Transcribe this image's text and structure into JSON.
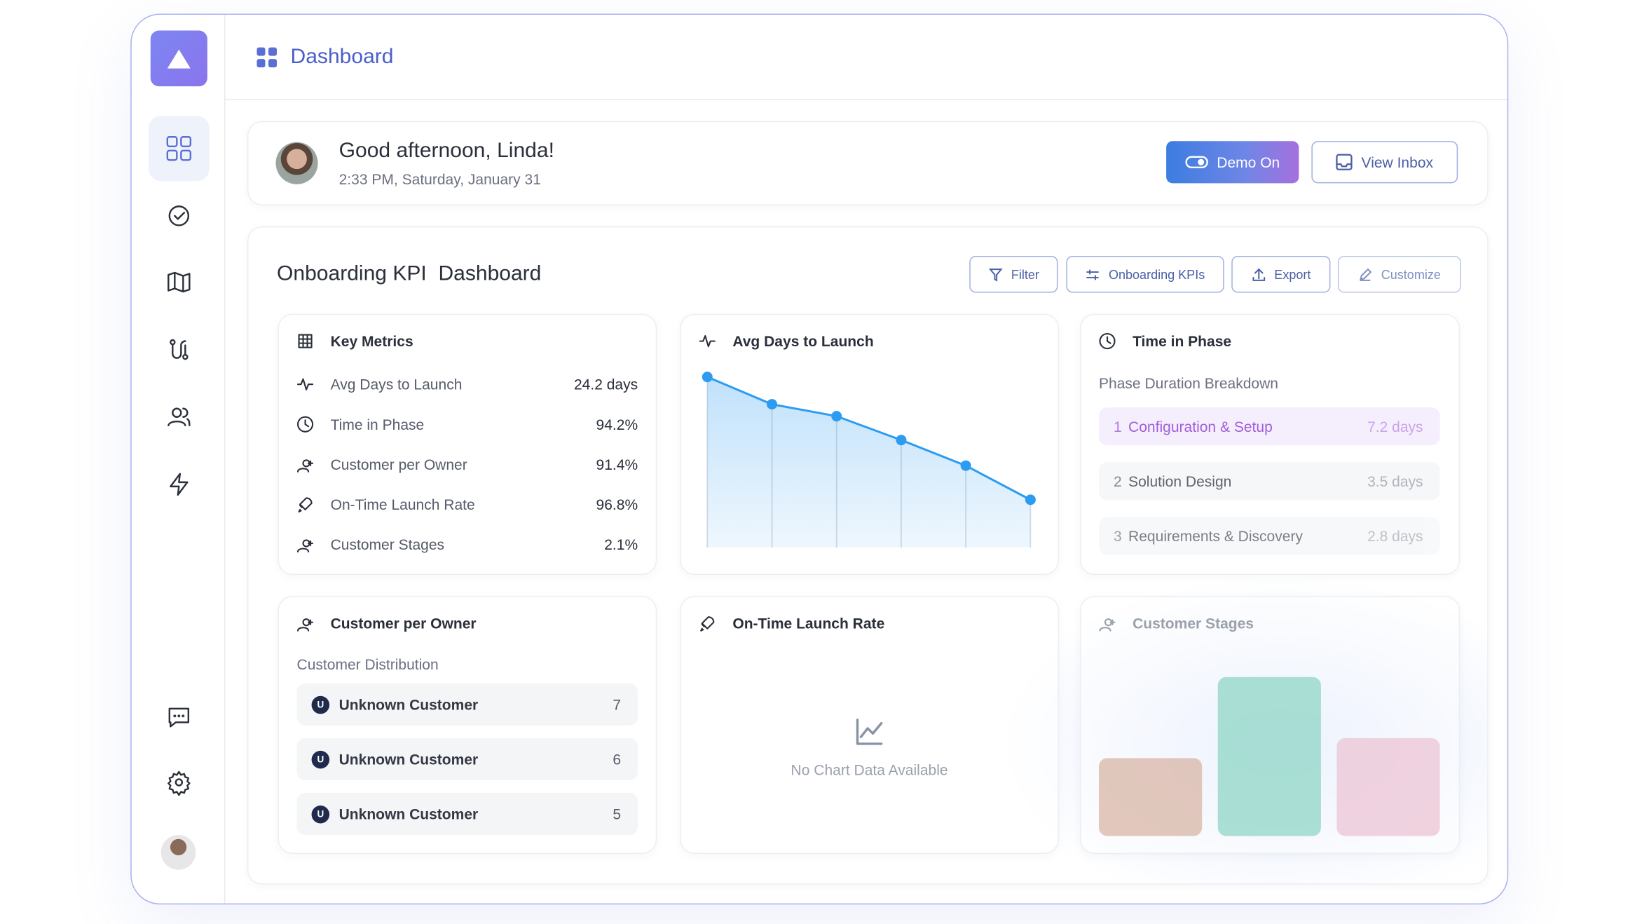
{
  "header": {
    "title": "Dashboard"
  },
  "greeting": {
    "title": "Good afternoon, Linda!",
    "subtitle": "2:33 PM, Saturday, January 31"
  },
  "actions": [
    "Demo On",
    "View Inbox"
  ],
  "kpi_dashboard": {
    "title": "Onboarding KPI  Dashboard",
    "toolbar": [
      "Filter",
      "Onboarding KPIs",
      "Export",
      "Customize"
    ],
    "key_metrics": {
      "title": "Key Metrics",
      "rows": [
        [
          "Avg Days to Launch",
          "24.2 days"
        ],
        [
          "Time in Phase",
          "94.2%"
        ],
        [
          "Customer per Owner",
          "91.4%"
        ],
        [
          "On-Time Launch Rate",
          "96.8%"
        ],
        [
          "Customer Stages",
          "2.1%"
        ]
      ]
    },
    "avg_days_chart": {
      "title": "Avg Days to Launch",
      "type": "line",
      "values": [
        100,
        84,
        77,
        63,
        48,
        28
      ],
      "ylim": [
        0,
        100
      ],
      "color": "#2d9cf0"
    },
    "time_in_phase": {
      "title": "Time in Phase",
      "subtitle": "Phase Duration Breakdown",
      "phases": [
        {
          "rank": 1,
          "name": "Configuration & Setup",
          "value": "7.2 days"
        },
        {
          "rank": 2,
          "name": "Solution Design",
          "value": "3.5 days"
        },
        {
          "rank": 3,
          "name": "Requirements & Discovery",
          "value": "2.8 days"
        }
      ]
    },
    "customer_per_owner": {
      "title": "Customer per Owner",
      "subtitle": "Customer Distribution",
      "rows": [
        {
          "initial": "U",
          "name": "Unknown Customer",
          "count": 7
        },
        {
          "initial": "U",
          "name": "Unknown Customer",
          "count": 6
        },
        {
          "initial": "U",
          "name": "Unknown Customer",
          "count": 5
        }
      ]
    },
    "on_time_launch": {
      "title": "On-Time Launch Rate",
      "empty": "No Chart Data Available"
    },
    "customer_stages": {
      "title": "Customer Stages",
      "type": "bar",
      "values": [
        74,
        151,
        93
      ],
      "ylim": [
        0,
        160
      ],
      "colors": [
        "#d8b6a6",
        "#8fd5c6",
        "#ecc4d4"
      ]
    }
  }
}
